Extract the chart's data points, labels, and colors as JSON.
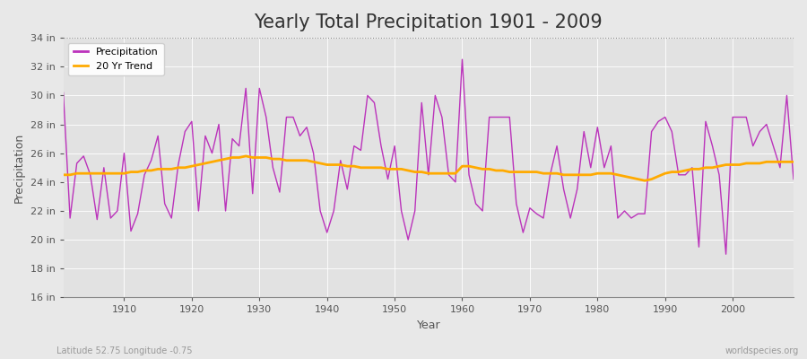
{
  "title": "Yearly Total Precipitation 1901 - 2009",
  "xlabel": "Year",
  "ylabel": "Precipitation",
  "bottom_left": "Latitude 52.75 Longitude -0.75",
  "bottom_right": "worldspecies.org",
  "ylim": [
    16,
    34
  ],
  "yticks": [
    16,
    18,
    20,
    22,
    24,
    26,
    28,
    30,
    32,
    34
  ],
  "ytick_labels": [
    "16 in",
    "18 in",
    "20 in",
    "22 in",
    "24 in",
    "26 in",
    "28 in",
    "30 in",
    "32 in",
    "34 in"
  ],
  "xlim": [
    1901,
    2009
  ],
  "xticks": [
    1910,
    1920,
    1930,
    1940,
    1950,
    1960,
    1970,
    1980,
    1990,
    2000
  ],
  "precip_color": "#bb33bb",
  "trend_color": "#ffaa00",
  "fig_bg_color": "#e8e8e8",
  "plot_bg_color": "#e2e2e2",
  "grid_color": "#ffffff",
  "title_fontsize": 15,
  "years": [
    1901,
    1902,
    1903,
    1904,
    1905,
    1906,
    1907,
    1908,
    1909,
    1910,
    1911,
    1912,
    1913,
    1914,
    1915,
    1916,
    1917,
    1918,
    1919,
    1920,
    1921,
    1922,
    1923,
    1924,
    1925,
    1926,
    1927,
    1928,
    1929,
    1930,
    1931,
    1932,
    1933,
    1934,
    1935,
    1936,
    1937,
    1938,
    1939,
    1940,
    1941,
    1942,
    1943,
    1944,
    1945,
    1946,
    1947,
    1948,
    1949,
    1950,
    1951,
    1952,
    1953,
    1954,
    1955,
    1956,
    1957,
    1958,
    1959,
    1960,
    1961,
    1962,
    1963,
    1964,
    1965,
    1966,
    1967,
    1968,
    1969,
    1970,
    1971,
    1972,
    1973,
    1974,
    1975,
    1976,
    1977,
    1978,
    1979,
    1980,
    1981,
    1982,
    1983,
    1984,
    1985,
    1986,
    1987,
    1988,
    1989,
    1990,
    1991,
    1992,
    1993,
    1994,
    1995,
    1996,
    1997,
    1998,
    1999,
    2000,
    2001,
    2002,
    2003,
    2004,
    2005,
    2006,
    2007,
    2008,
    2009
  ],
  "precip": [
    30.2,
    21.5,
    25.3,
    25.8,
    24.5,
    21.4,
    25.0,
    21.5,
    22.0,
    26.0,
    20.6,
    21.8,
    24.5,
    25.5,
    27.2,
    22.5,
    21.5,
    25.2,
    27.5,
    28.2,
    22.0,
    27.2,
    26.0,
    28.0,
    22.0,
    27.0,
    26.5,
    30.5,
    23.2,
    30.5,
    28.5,
    25.0,
    23.3,
    28.5,
    28.5,
    27.2,
    27.8,
    26.0,
    22.0,
    20.5,
    22.0,
    25.5,
    23.5,
    26.5,
    26.2,
    30.0,
    29.5,
    26.5,
    24.2,
    26.5,
    22.0,
    20.0,
    22.0,
    29.5,
    24.5,
    30.0,
    28.5,
    24.5,
    24.0,
    32.5,
    24.5,
    22.5,
    22.0,
    28.5,
    28.5,
    28.5,
    28.5,
    22.5,
    20.5,
    22.2,
    21.8,
    21.5,
    24.5,
    26.5,
    23.5,
    21.5,
    23.5,
    27.5,
    25.0,
    27.8,
    25.0,
    26.5,
    21.5,
    22.0,
    21.5,
    21.8,
    21.8,
    27.5,
    28.2,
    28.5,
    27.5,
    24.5,
    24.5,
    25.0,
    19.5,
    28.2,
    26.5,
    24.5,
    19.0,
    28.5,
    28.5,
    28.5,
    26.5,
    27.5,
    28.0,
    26.5,
    25.0,
    30.0,
    24.2
  ],
  "trend": [
    24.5,
    24.5,
    24.6,
    24.6,
    24.6,
    24.6,
    24.6,
    24.6,
    24.6,
    24.6,
    24.7,
    24.7,
    24.8,
    24.8,
    24.9,
    24.9,
    24.9,
    25.0,
    25.0,
    25.1,
    25.2,
    25.3,
    25.4,
    25.5,
    25.6,
    25.7,
    25.7,
    25.8,
    25.7,
    25.7,
    25.7,
    25.6,
    25.6,
    25.5,
    25.5,
    25.5,
    25.5,
    25.4,
    25.3,
    25.2,
    25.2,
    25.2,
    25.1,
    25.1,
    25.0,
    25.0,
    25.0,
    25.0,
    24.9,
    24.9,
    24.9,
    24.8,
    24.7,
    24.7,
    24.6,
    24.6,
    24.6,
    24.6,
    24.6,
    25.1,
    25.1,
    25.0,
    24.9,
    24.9,
    24.8,
    24.8,
    24.7,
    24.7,
    24.7,
    24.7,
    24.7,
    24.6,
    24.6,
    24.6,
    24.5,
    24.5,
    24.5,
    24.5,
    24.5,
    24.6,
    24.6,
    24.6,
    24.5,
    24.4,
    24.3,
    24.2,
    24.1,
    24.2,
    24.4,
    24.6,
    24.7,
    24.7,
    24.8,
    24.9,
    24.9,
    25.0,
    25.0,
    25.1,
    25.2,
    25.2,
    25.2,
    25.3,
    25.3,
    25.3,
    25.4,
    25.4,
    25.4,
    25.4,
    25.4
  ]
}
